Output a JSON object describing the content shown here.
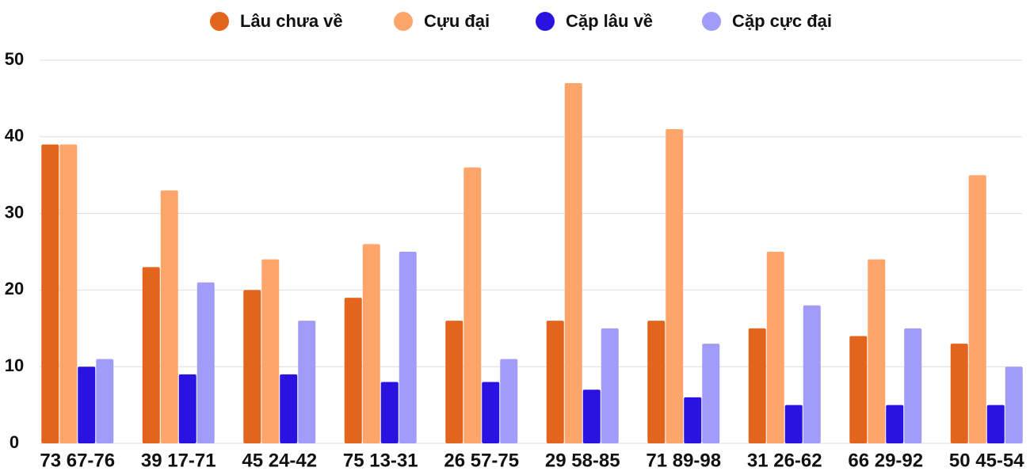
{
  "chart_data": {
    "type": "bar",
    "categories": [
      "73 67-76",
      "39 17-71",
      "45 24-42",
      "75 13-31",
      "26 57-75",
      "29 58-85",
      "71 89-98",
      "31 26-62",
      "66 29-92",
      "50 45-54"
    ],
    "series": [
      {
        "name": "Lâu chưa về",
        "color": "#e3641c",
        "values": [
          39,
          23,
          20,
          19,
          16,
          16,
          16,
          15,
          14,
          13
        ]
      },
      {
        "name": "Cựu đại",
        "color": "#fea56b",
        "values": [
          39,
          33,
          24,
          26,
          36,
          47,
          41,
          25,
          24,
          35
        ]
      },
      {
        "name": "Cặp lâu về",
        "color": "#2a13e0",
        "values": [
          10,
          9,
          9,
          8,
          8,
          7,
          6,
          5,
          5,
          5
        ]
      },
      {
        "name": "Cặp cực đại",
        "color": "#a09cf7",
        "values": [
          11,
          21,
          16,
          25,
          11,
          15,
          13,
          18,
          15,
          10
        ]
      }
    ],
    "ylim": [
      0,
      50
    ],
    "yticks": [
      0,
      10,
      20,
      30,
      40,
      50
    ],
    "grid": true,
    "legend": "top"
  }
}
